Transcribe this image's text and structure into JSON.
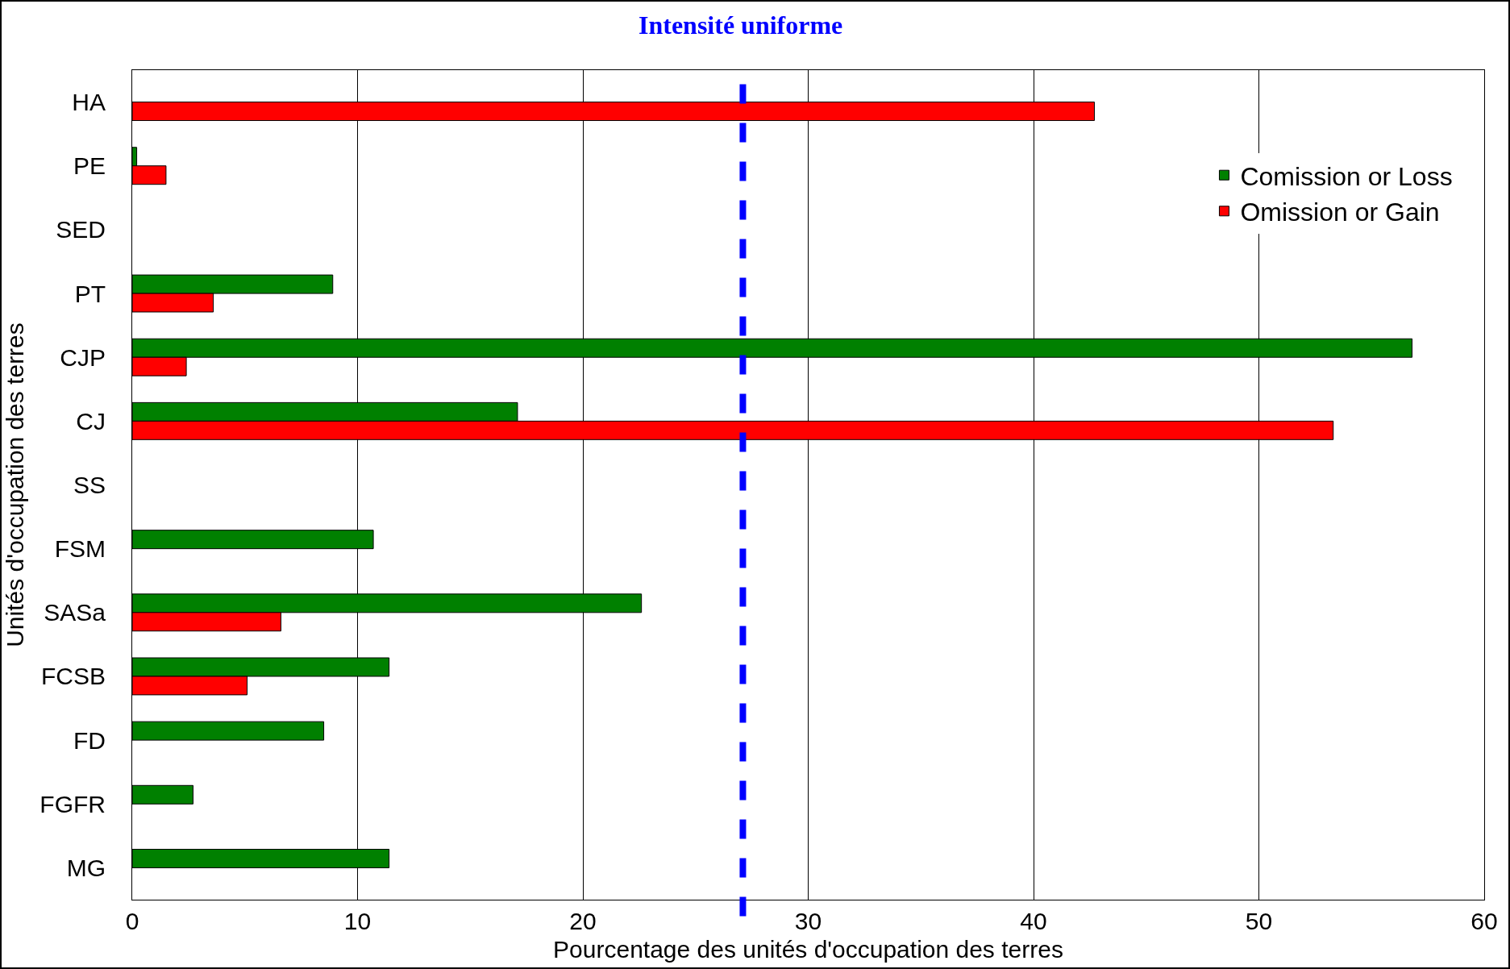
{
  "chart_data": {
    "type": "bar",
    "orientation": "horizontal",
    "xlabel": "Pourcentage des unités d'occupation des terres",
    "ylabel": "Unités d'occupation des terres",
    "categories": [
      "HA",
      "PE",
      "SED",
      "PT",
      "CJP",
      "CJ",
      "SS",
      "FSM",
      "SASa",
      "FCSB",
      "FD",
      "FGFR",
      "MG"
    ],
    "series": [
      {
        "name": "Comission or Loss",
        "color": "#008000",
        "values": [
          null,
          0.2,
          null,
          8.9,
          56.8,
          17.1,
          null,
          10.7,
          22.6,
          11.4,
          8.5,
          2.7,
          11.4
        ]
      },
      {
        "name": "Omission or Gain",
        "color": "#ff0000",
        "values": [
          42.7,
          1.5,
          null,
          3.6,
          2.4,
          53.3,
          null,
          null,
          6.6,
          5.1,
          null,
          null,
          null
        ]
      }
    ],
    "xlim": [
      0,
      60
    ],
    "xticks": [
      0,
      10,
      20,
      30,
      40,
      50,
      60
    ],
    "grid": "x",
    "legend": "top right",
    "ref_lines": [
      {
        "axis": "x",
        "value": 27.1,
        "label": "Intensité uniforme",
        "color": "#0000ff",
        "line_style": "dashed"
      }
    ]
  }
}
